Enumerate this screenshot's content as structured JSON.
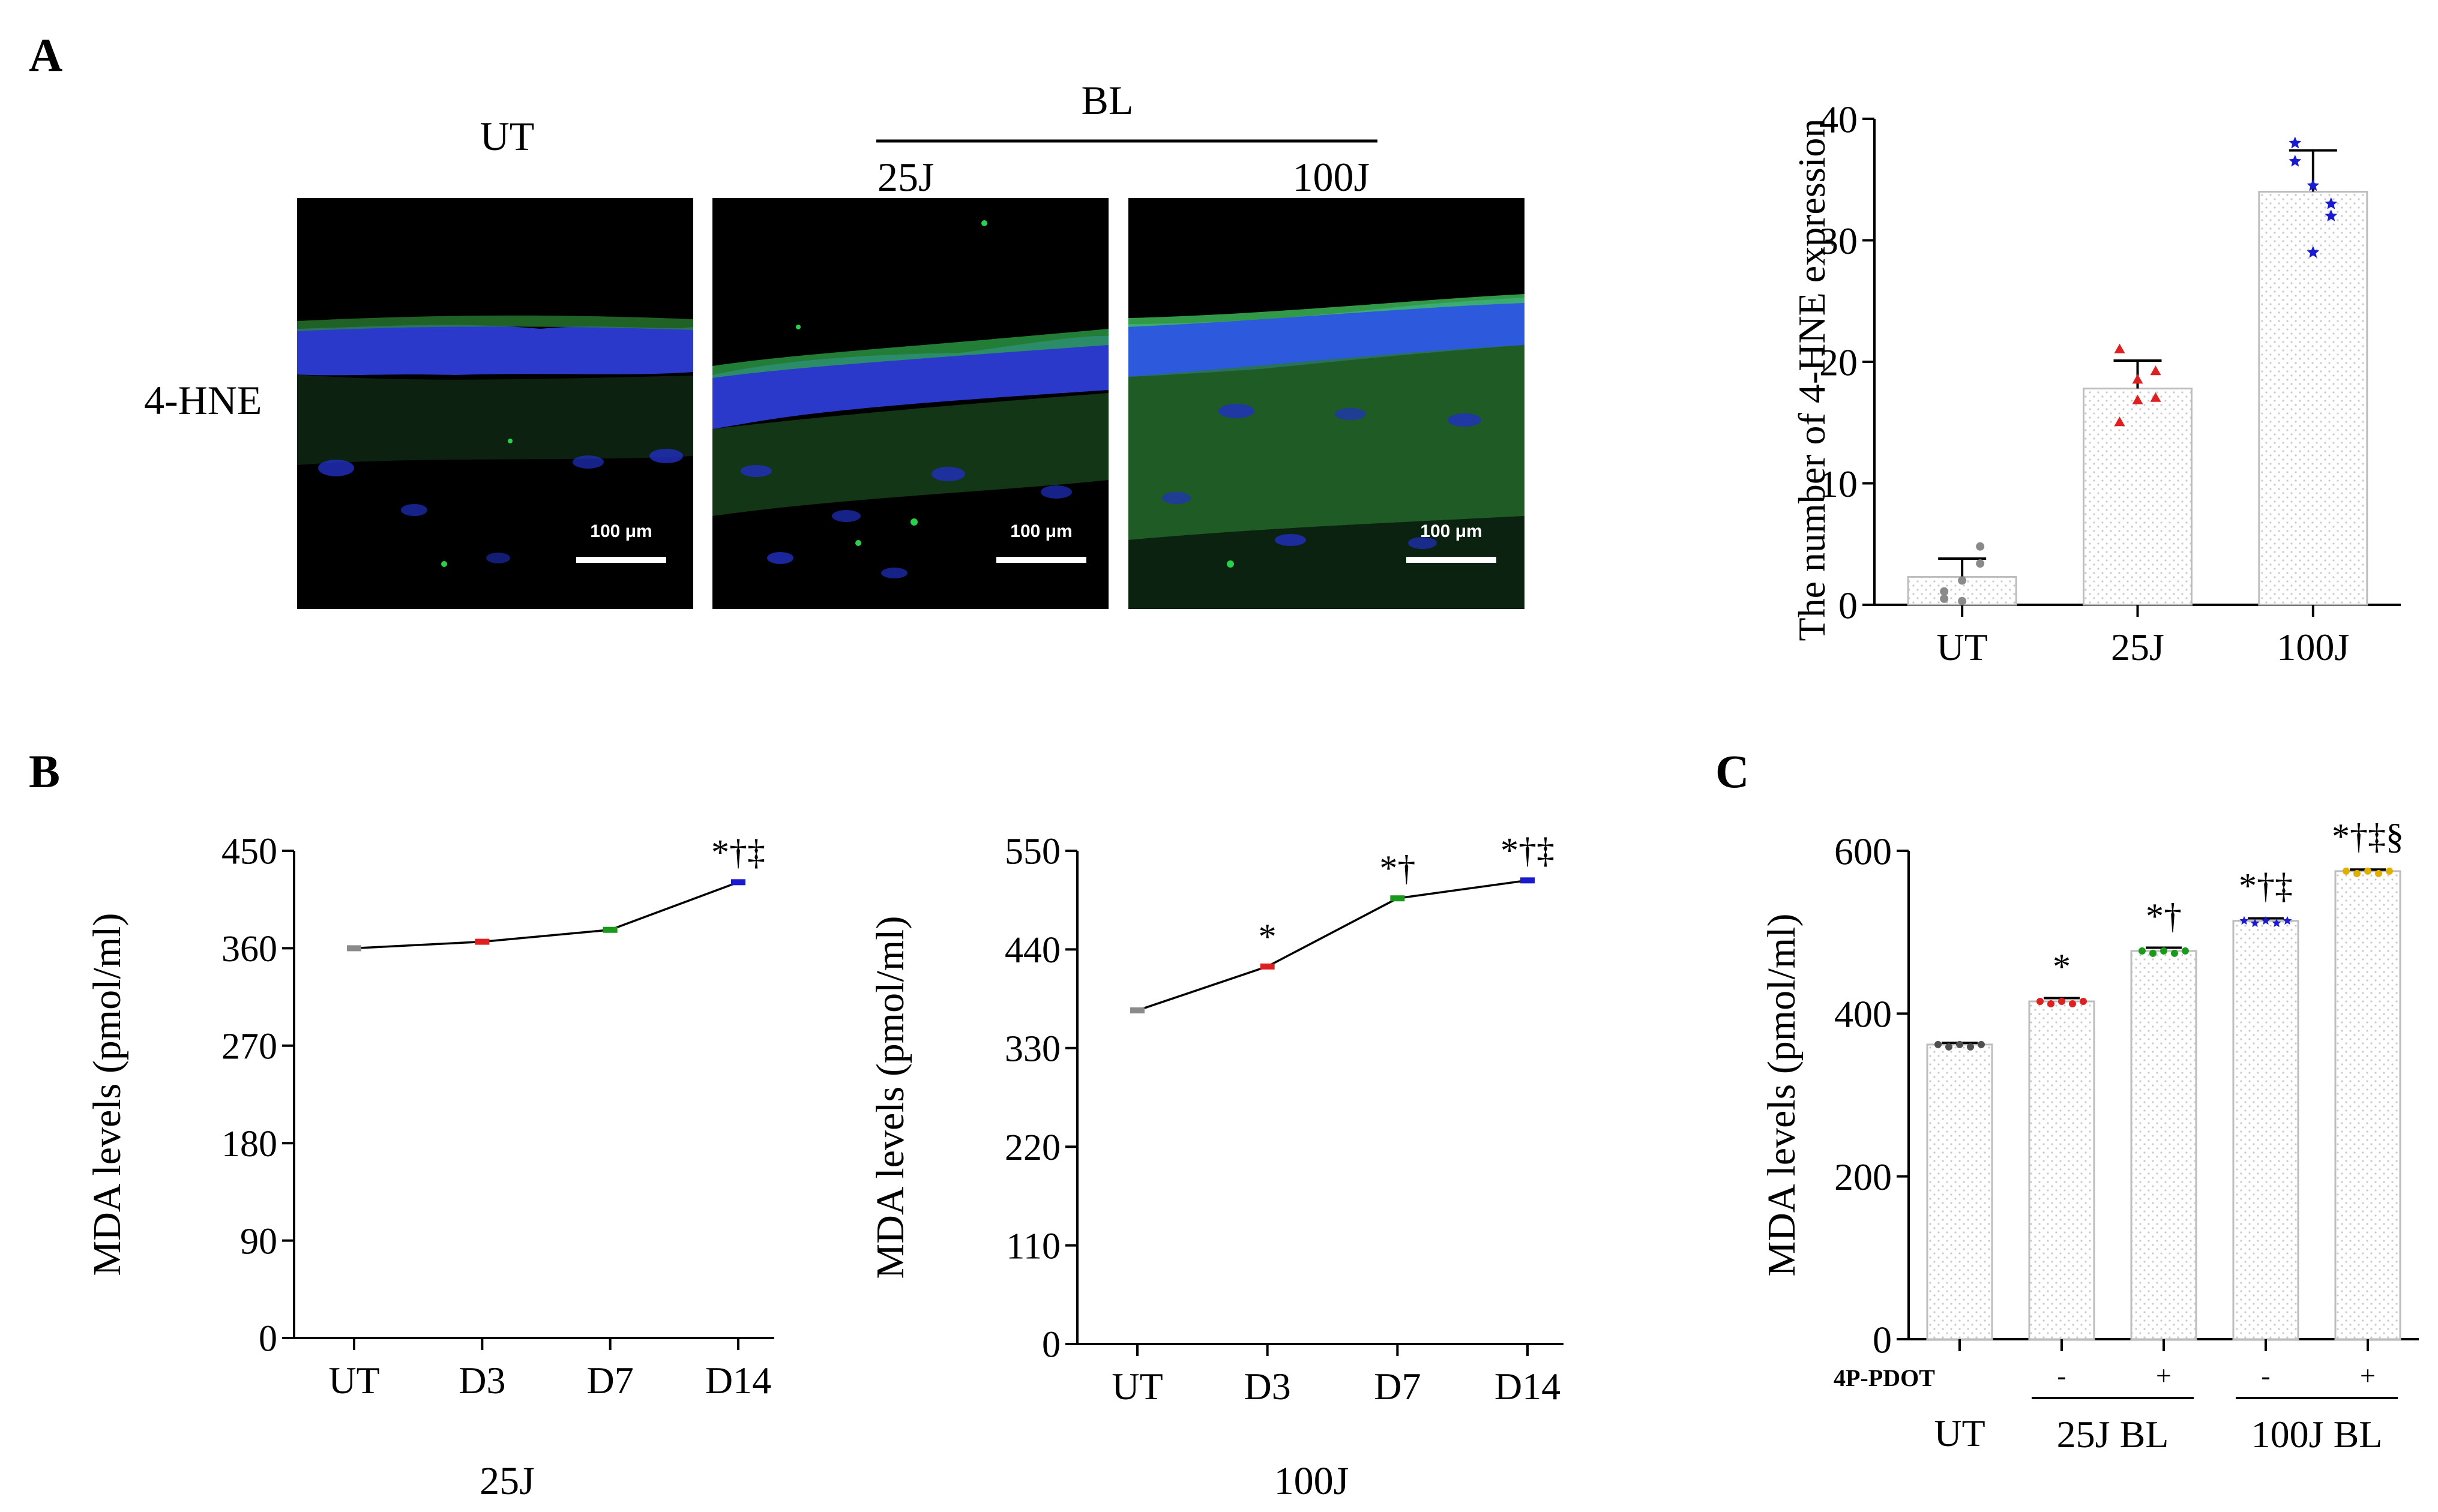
{
  "panel_labels": {
    "A": "A",
    "B": "B",
    "C": "C"
  },
  "micrographs": {
    "row_label": "4-HNE",
    "col_ut": "UT",
    "col_group": "BL",
    "col_25": "25J",
    "col_100": "100J",
    "scale_bar": "100 μm",
    "colors": {
      "nuclei": "#2f3fe0",
      "stain": "#2e9a3a",
      "background": "#000000"
    }
  },
  "chart_data": [
    {
      "id": "A-bar",
      "type": "bar",
      "title": "",
      "xlabel": "",
      "ylabel": "The number of 4-HNE expression",
      "categories": [
        "UT",
        "25J",
        "100J"
      ],
      "values": [
        2.3,
        17.8,
        34.0
      ],
      "errors": [
        1.5,
        2.3,
        3.4
      ],
      "ylim": [
        0,
        40
      ],
      "yticks": [
        0,
        10,
        20,
        30,
        40
      ],
      "points": [
        [
          0.5,
          2.0,
          4.8,
          1.1,
          0.3,
          3.4
        ],
        [
          21.0,
          16.8,
          19.2,
          15.0,
          18.5,
          17.0
        ],
        [
          38.0,
          34.5,
          32.0,
          36.5,
          29.0,
          33.0
        ]
      ],
      "point_colors": [
        "#8a8a8a",
        "#e02020",
        "#1a1ad0"
      ],
      "point_markers": [
        "circle",
        "triangle",
        "star"
      ]
    },
    {
      "id": "B-25J",
      "type": "line",
      "title": "25J",
      "xlabel": "",
      "ylabel": "MDA levels (pmol/ml)",
      "categories": [
        "UT",
        "D3",
        "D7",
        "D14"
      ],
      "values": [
        360,
        366,
        377,
        421
      ],
      "ylim": [
        0,
        450
      ],
      "yticks": [
        0,
        90,
        180,
        270,
        360,
        450
      ],
      "point_colors": [
        "#8a8a8a",
        "#e02020",
        "#1a9a1a",
        "#1a1ad0"
      ],
      "annotations": [
        "",
        "",
        "",
        "*†‡"
      ]
    },
    {
      "id": "B-100J",
      "type": "line",
      "title": "100J",
      "xlabel": "",
      "ylabel": "MDA levels (pmol/ml)",
      "categories": [
        "UT",
        "D3",
        "D7",
        "D14"
      ],
      "values": [
        372,
        421,
        497,
        517
      ],
      "ylim": [
        0,
        550
      ],
      "yticks": [
        0,
        110,
        220,
        330,
        440,
        550
      ],
      "point_colors": [
        "#8a8a8a",
        "#e02020",
        "#1a9a1a",
        "#1a1ad0"
      ],
      "annotations": [
        "",
        "*",
        "*†",
        "*†‡"
      ]
    },
    {
      "id": "C-bar",
      "type": "bar",
      "title": "",
      "xlabel": "",
      "ylabel": "MDA levels (pmol/ml)",
      "categories": [
        "UT",
        "25J BL -",
        "25J BL +",
        "100J BL -",
        "100J BL +"
      ],
      "values": [
        362,
        415,
        477,
        514,
        575
      ],
      "errors": [
        2,
        4,
        4,
        3,
        2
      ],
      "ylim": [
        0,
        600
      ],
      "yticks": [
        0,
        200,
        400,
        600
      ],
      "point_colors": [
        "#505050",
        "#e02020",
        "#1a9a1a",
        "#1a1ad0",
        "#e0b000"
      ],
      "annotations": [
        "",
        "*",
        "*†",
        "*†‡",
        "*†‡§"
      ],
      "pdot_label": "4P-PDOT",
      "pdot_signs": [
        "-",
        "+",
        "-",
        "+"
      ],
      "group_labels": [
        "UT",
        "25J BL",
        "100J BL"
      ]
    }
  ]
}
